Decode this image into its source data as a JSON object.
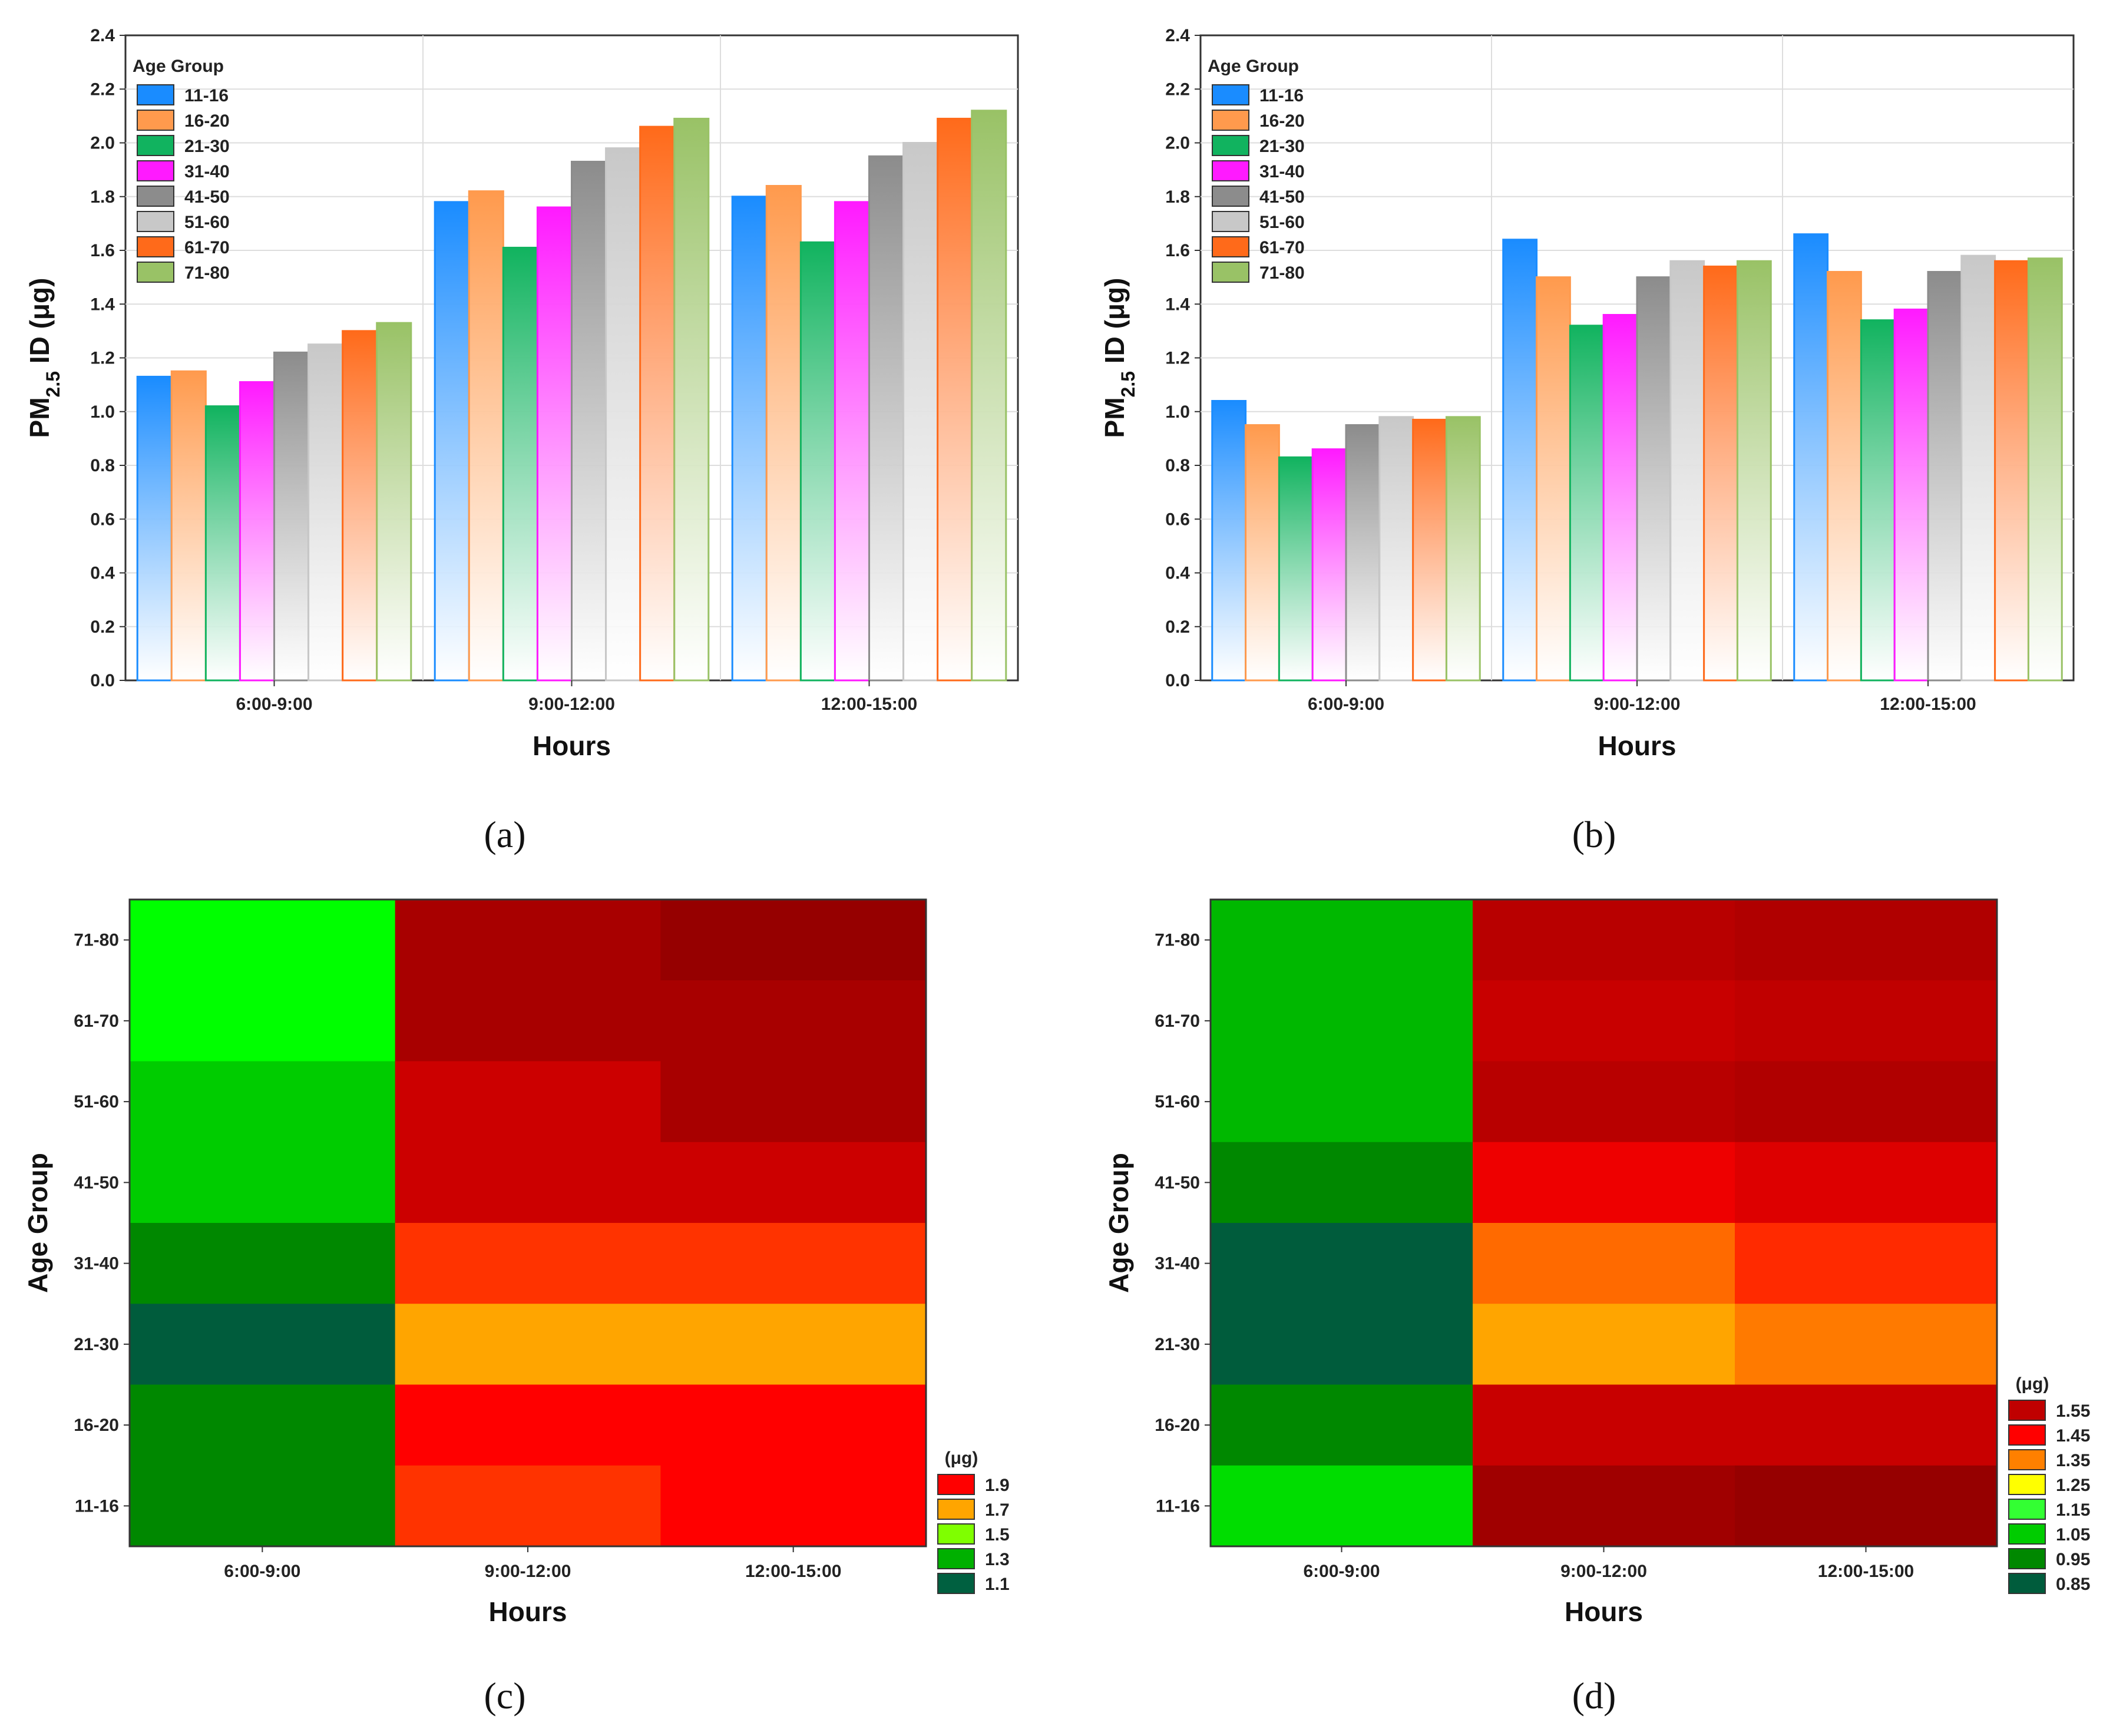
{
  "figure": {
    "labels": [
      "(a)",
      "(b)",
      "(c)",
      "(d)"
    ]
  },
  "chart_data": [
    {
      "id": "a",
      "type": "bar",
      "ylabel_main": "PM",
      "ylabel_sub": "2.5",
      "ylabel_rest": " ID (μg)",
      "xlabel": "Hours",
      "categories": [
        "6:00-9:00",
        "9:00-12:00",
        "12:00-15:00"
      ],
      "ylim": [
        0,
        2.4
      ],
      "yticks": [
        "0.0",
        "0.2",
        "0.4",
        "0.6",
        "0.8",
        "1.0",
        "1.2",
        "1.4",
        "1.6",
        "1.8",
        "2.0",
        "2.2",
        "2.4"
      ],
      "legend_title": "Age Group",
      "grid": true,
      "series": [
        {
          "name": "11-16",
          "color": "#1a8cff",
          "values": [
            1.13,
            1.78,
            1.8
          ]
        },
        {
          "name": "16-20",
          "color": "#ff9a4d",
          "values": [
            1.15,
            1.82,
            1.84
          ]
        },
        {
          "name": "21-30",
          "color": "#11b35f",
          "values": [
            1.02,
            1.61,
            1.63
          ]
        },
        {
          "name": "31-40",
          "color": "#ff1aff",
          "values": [
            1.11,
            1.76,
            1.78
          ]
        },
        {
          "name": "41-50",
          "color": "#8c8c8c",
          "values": [
            1.22,
            1.93,
            1.95
          ]
        },
        {
          "name": "51-60",
          "color": "#c8c8c8",
          "values": [
            1.25,
            1.98,
            2.0
          ]
        },
        {
          "name": "61-70",
          "color": "#ff6a1a",
          "values": [
            1.3,
            2.06,
            2.09
          ]
        },
        {
          "name": "71-80",
          "color": "#99c266",
          "values": [
            1.33,
            2.09,
            2.12
          ]
        }
      ]
    },
    {
      "id": "b",
      "type": "bar",
      "ylabel_main": "PM",
      "ylabel_sub": "2.5",
      "ylabel_rest": " ID (μg)",
      "xlabel": "Hours",
      "categories": [
        "6:00-9:00",
        "9:00-12:00",
        "12:00-15:00"
      ],
      "ylim": [
        0,
        2.4
      ],
      "yticks": [
        "0.0",
        "0.2",
        "0.4",
        "0.6",
        "0.8",
        "1.0",
        "1.2",
        "1.4",
        "1.6",
        "1.8",
        "2.0",
        "2.2",
        "2.4"
      ],
      "legend_title": "Age Group",
      "grid": true,
      "series": [
        {
          "name": "11-16",
          "color": "#1a8cff",
          "values": [
            1.04,
            1.64,
            1.66
          ]
        },
        {
          "name": "16-20",
          "color": "#ff9a4d",
          "values": [
            0.95,
            1.5,
            1.52
          ]
        },
        {
          "name": "21-30",
          "color": "#11b35f",
          "values": [
            0.83,
            1.32,
            1.34
          ]
        },
        {
          "name": "31-40",
          "color": "#ff1aff",
          "values": [
            0.86,
            1.36,
            1.38
          ]
        },
        {
          "name": "41-50",
          "color": "#8c8c8c",
          "values": [
            0.95,
            1.5,
            1.52
          ]
        },
        {
          "name": "51-60",
          "color": "#c8c8c8",
          "values": [
            0.98,
            1.56,
            1.58
          ]
        },
        {
          "name": "61-70",
          "color": "#ff6a1a",
          "values": [
            0.97,
            1.54,
            1.56
          ]
        },
        {
          "name": "71-80",
          "color": "#99c266",
          "values": [
            0.98,
            1.56,
            1.57
          ]
        }
      ]
    },
    {
      "id": "c",
      "type": "heatmap",
      "xlabel": "Hours",
      "ylabel": "Age Group",
      "x": [
        "6:00-9:00",
        "9:00-12:00",
        "12:00-15:00"
      ],
      "y_top_to_bottom": [
        "71-80",
        "61-70",
        "51-60",
        "41-50",
        "31-40",
        "21-30",
        "16-20",
        "11-16"
      ],
      "columns": [
        [
          1.33,
          1.3,
          1.25,
          1.22,
          1.11,
          1.02,
          1.15,
          1.13
        ],
        [
          2.09,
          2.06,
          1.98,
          1.93,
          1.76,
          1.61,
          1.82,
          1.78
        ],
        [
          2.12,
          2.09,
          2.0,
          1.95,
          1.78,
          1.63,
          1.84,
          1.8
        ]
      ],
      "legend_title": "(μg)",
      "legend": [
        {
          "label": "1.9",
          "color": "#ff0000"
        },
        {
          "label": "1.7",
          "color": "#ffa500"
        },
        {
          "label": "1.5",
          "color": "#7fff00"
        },
        {
          "label": "1.3",
          "color": "#00b000"
        },
        {
          "label": "1.1",
          "color": "#006040"
        }
      ],
      "cell_colors_top_to_bottom": [
        [
          "#00ff00",
          "#a80000",
          "#960000"
        ],
        [
          "#00ff00",
          "#a80000",
          "#a80000"
        ],
        [
          "#00cc00",
          "#cc0000",
          "#a80000"
        ],
        [
          "#00cc00",
          "#cc0000",
          "#cc0000"
        ],
        [
          "#008800",
          "#ff3300",
          "#ff3300"
        ],
        [
          "#005c3c",
          "#ffa500",
          "#ffa500"
        ],
        [
          "#008800",
          "#ff0000",
          "#ff0000"
        ],
        [
          "#008800",
          "#ff3300",
          "#ff0000"
        ]
      ]
    },
    {
      "id": "d",
      "type": "heatmap",
      "xlabel": "Hours",
      "ylabel": "Age Group",
      "x": [
        "6:00-9:00",
        "9:00-12:00",
        "12:00-15:00"
      ],
      "y_top_to_bottom": [
        "71-80",
        "61-70",
        "51-60",
        "41-50",
        "31-40",
        "21-30",
        "16-20",
        "11-16"
      ],
      "columns": [
        [
          0.98,
          0.97,
          0.98,
          0.95,
          0.86,
          0.83,
          0.95,
          1.04
        ],
        [
          1.56,
          1.54,
          1.56,
          1.5,
          1.36,
          1.32,
          1.5,
          1.64
        ],
        [
          1.57,
          1.56,
          1.58,
          1.52,
          1.38,
          1.34,
          1.52,
          1.66
        ]
      ],
      "legend_title": "(μg)",
      "legend": [
        {
          "label": "1.55",
          "color": "#c00000"
        },
        {
          "label": "1.45",
          "color": "#ff0000"
        },
        {
          "label": "1.35",
          "color": "#ff8000"
        },
        {
          "label": "1.25",
          "color": "#ffff00"
        },
        {
          "label": "1.15",
          "color": "#33ff33"
        },
        {
          "label": "1.05",
          "color": "#00cc00"
        },
        {
          "label": "0.95",
          "color": "#008800"
        },
        {
          "label": "0.85",
          "color": "#005c3c"
        }
      ],
      "cell_colors_top_to_bottom": [
        [
          "#00b800",
          "#b80000",
          "#b00000"
        ],
        [
          "#00b800",
          "#c80000",
          "#c00000"
        ],
        [
          "#00b800",
          "#b80000",
          "#b00000"
        ],
        [
          "#008800",
          "#ee0000",
          "#dd0000"
        ],
        [
          "#005c3c",
          "#ff6a00",
          "#ff2a00"
        ],
        [
          "#005c3c",
          "#ffa500",
          "#ff7a00"
        ],
        [
          "#008800",
          "#c80000",
          "#c80000"
        ],
        [
          "#00dd00",
          "#a00000",
          "#960000"
        ]
      ]
    }
  ]
}
